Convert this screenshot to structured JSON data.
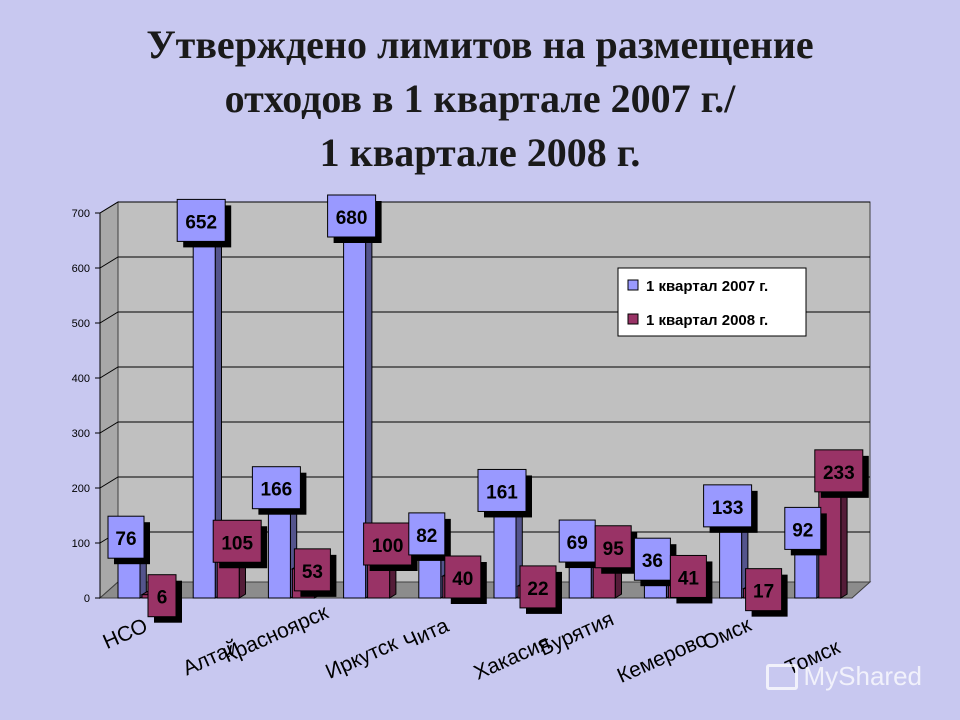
{
  "title": {
    "line1": "Утверждено лимитов на размещение",
    "line2": "отходов в 1 квартале 2007 г./",
    "line3": "1 квартале 2008 г."
  },
  "watermark": "MyShared",
  "colors": {
    "background": "#c8c8f0",
    "plot_wall": "#c0c0c0",
    "series_2007": "#9999ff",
    "series_2008": "#993366"
  },
  "chart_data": {
    "type": "bar",
    "categories": [
      "НСО",
      "Алтай",
      "Красноярск",
      "Иркутск",
      "Чита",
      "Хакасия",
      "Бурятия",
      "Кемерово",
      "Омск",
      "Томск"
    ],
    "series": [
      {
        "name": "1 квартал 2007 г.",
        "values": [
          76,
          652,
          166,
          680,
          82,
          161,
          69,
          36,
          133,
          92
        ]
      },
      {
        "name": "1 квартал 2008 г.",
        "values": [
          6,
          105,
          53,
          100,
          40,
          22,
          95,
          41,
          17,
          233
        ]
      }
    ],
    "yticks": [
      "0",
      "100",
      "200",
      "300",
      "400",
      "500",
      "600",
      "700"
    ],
    "ylim": [
      0,
      700
    ],
    "grid": true,
    "legend_position": "top-right",
    "view": "3d-clustered"
  }
}
